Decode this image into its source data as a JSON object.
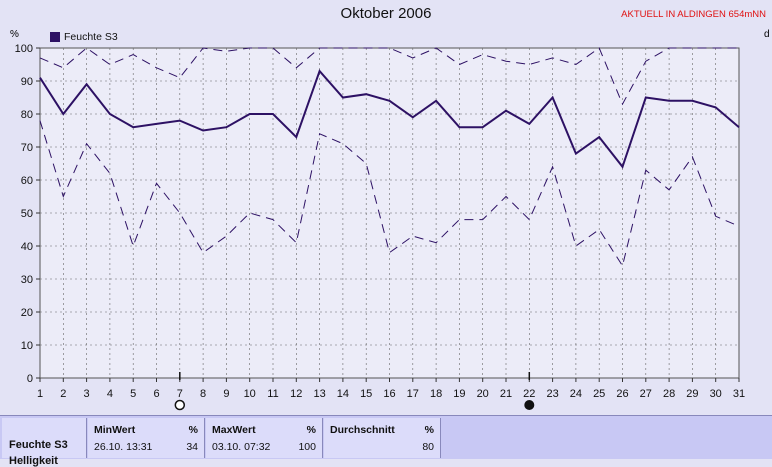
{
  "title": "Oktober 2006",
  "station": "AKTUELL IN ALDINGEN 654mNN",
  "colors": {
    "line": "#2d1164",
    "grid": "#666666",
    "plot_bg": "#ececf8"
  },
  "chart_data": {
    "type": "line",
    "x": [
      1,
      2,
      3,
      4,
      5,
      6,
      7,
      8,
      9,
      10,
      11,
      12,
      13,
      14,
      15,
      16,
      17,
      18,
      19,
      20,
      21,
      22,
      23,
      24,
      25,
      26,
      27,
      28,
      29,
      30,
      31
    ],
    "ylim": [
      0,
      100
    ],
    "yticks": [
      0,
      10,
      20,
      30,
      40,
      50,
      60,
      70,
      80,
      90,
      100
    ],
    "grid": true,
    "y_unit_left": "%",
    "y_unit_right": "d",
    "legend": [
      "Feuchte S3"
    ],
    "legend_position": "top-left",
    "series": [
      {
        "name": "Feuchte S3",
        "role": "avg",
        "style": "solid",
        "values": [
          91,
          80,
          89,
          80,
          76,
          77,
          78,
          75,
          76,
          80,
          80,
          73,
          93,
          85,
          86,
          84,
          79,
          84,
          76,
          76,
          81,
          77,
          85,
          68,
          73,
          64,
          85,
          84,
          84,
          82,
          76
        ]
      },
      {
        "name": "",
        "role": "max",
        "style": "dashed",
        "values": [
          97,
          94,
          100,
          95,
          98,
          94,
          91,
          100,
          99,
          100,
          100,
          94,
          100,
          100,
          100,
          100,
          97,
          100,
          95,
          98,
          96,
          95,
          97,
          95,
          100,
          83,
          96,
          100,
          100,
          100,
          100
        ]
      },
      {
        "name": "",
        "role": "min",
        "style": "dashed",
        "values": [
          78,
          55,
          71,
          62,
          40,
          59,
          50,
          38,
          43,
          50,
          48,
          41,
          74,
          71,
          65,
          38,
          43,
          41,
          48,
          48,
          55,
          48,
          64,
          40,
          45,
          34,
          63,
          57,
          67,
          49,
          46
        ]
      }
    ],
    "moon_markers": [
      {
        "day": 7,
        "phase": "full-moon"
      },
      {
        "day": 22,
        "phase": "new-moon"
      }
    ]
  },
  "footer": {
    "series_label": "Feuchte S3",
    "next_label": "Helligkeit",
    "min": {
      "label": "MinWert",
      "unit": "%",
      "time": "26.10.  13:31",
      "value": "34"
    },
    "max": {
      "label": "MaxWert",
      "unit": "%",
      "time": "03.10.  07:32",
      "value": "100"
    },
    "avg": {
      "label": "Durchschnitt",
      "unit": "%",
      "value": "80"
    }
  }
}
